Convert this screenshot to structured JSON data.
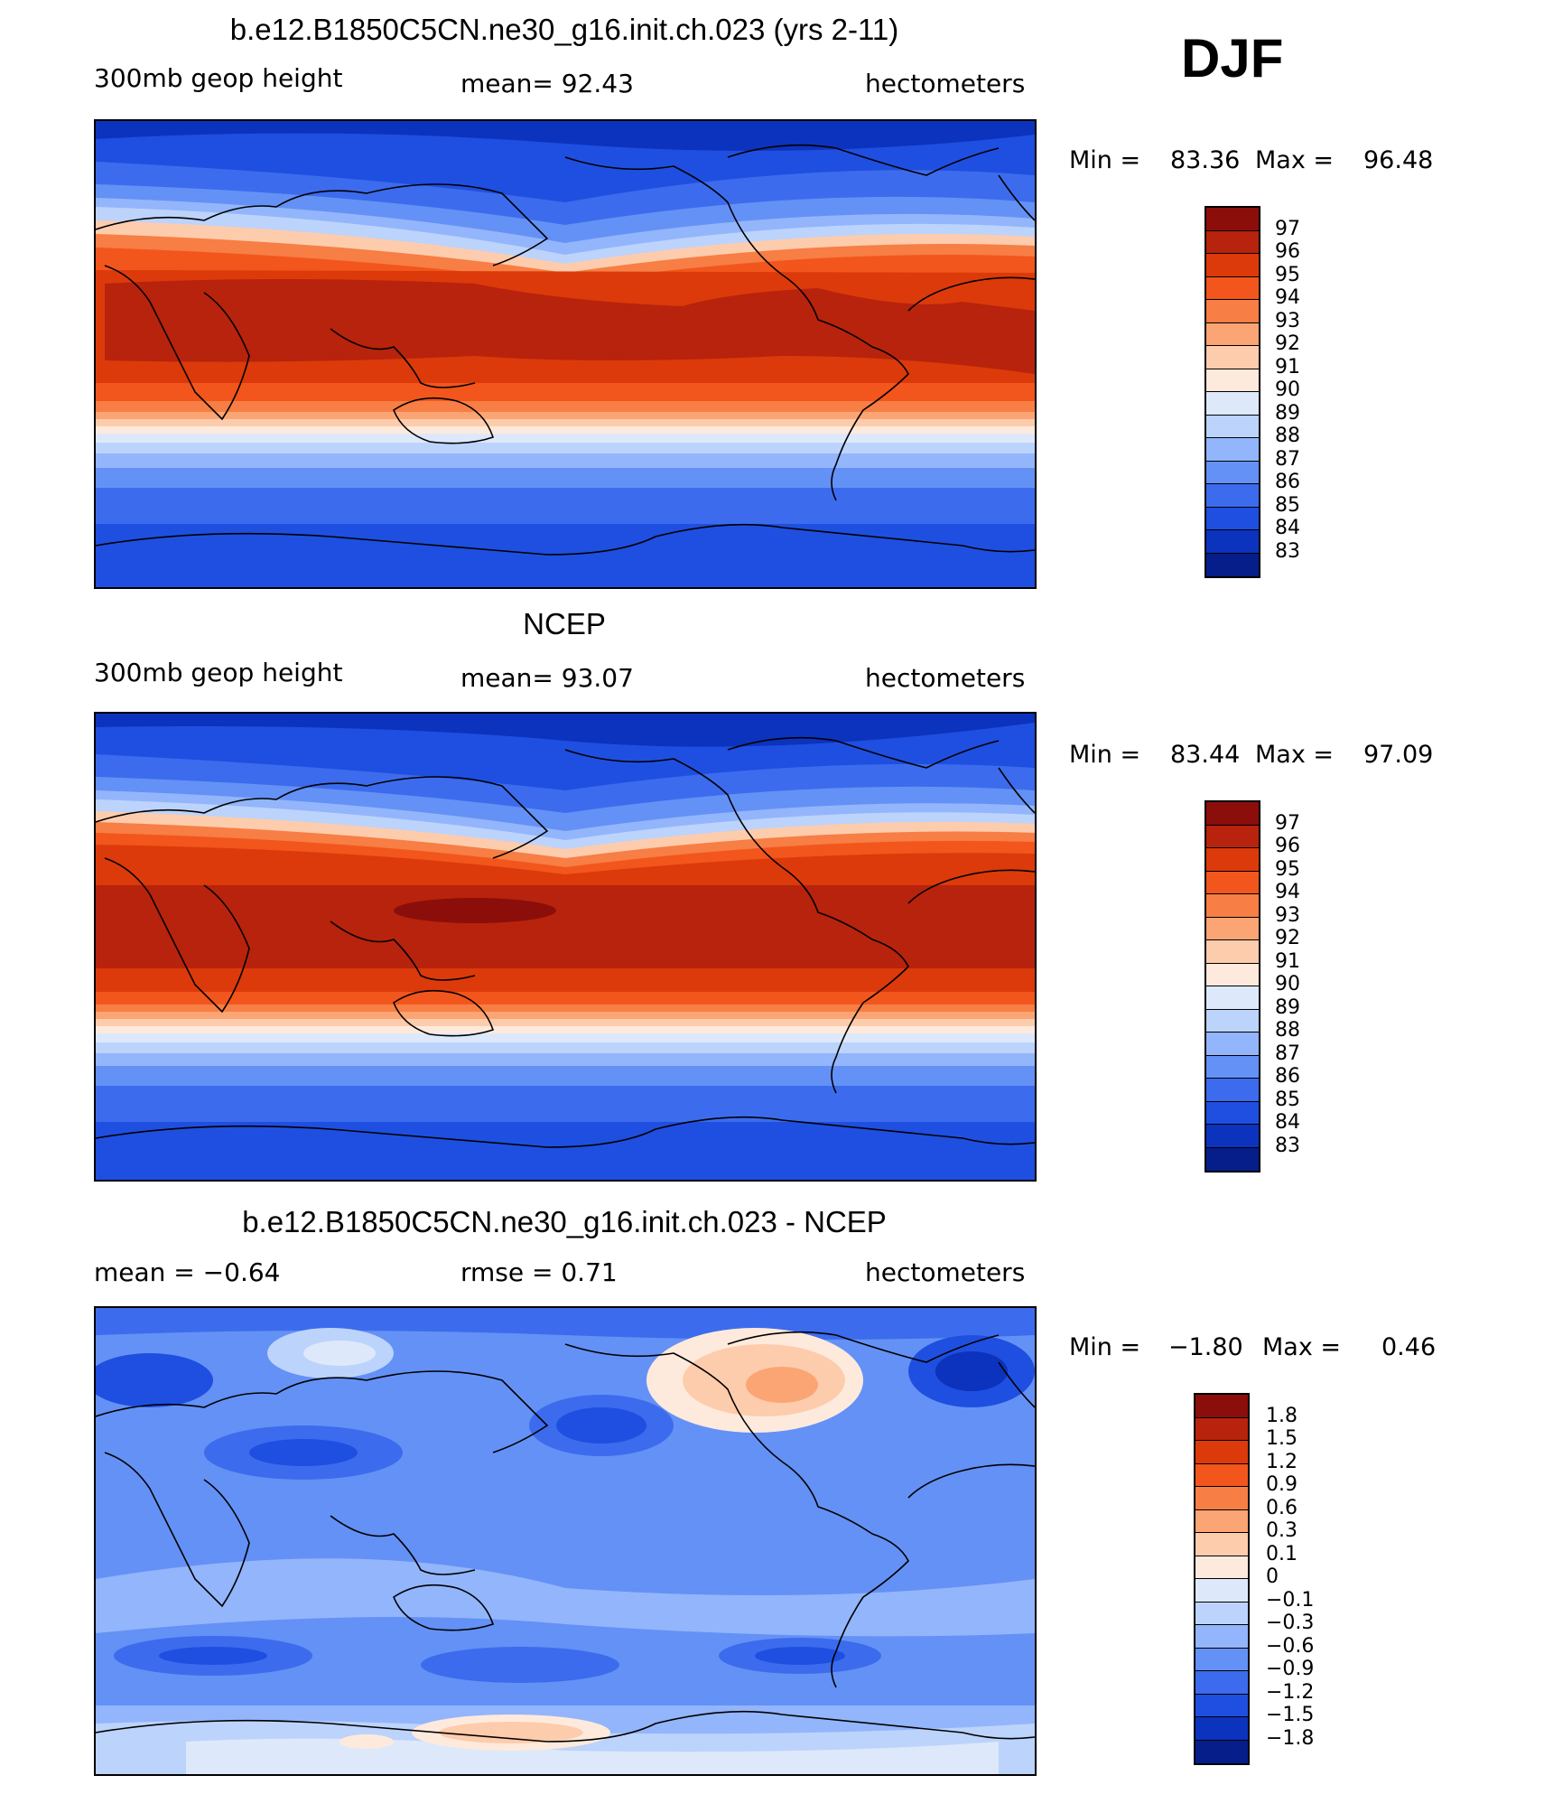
{
  "season": "DJF",
  "panels": [
    {
      "id": "model",
      "title": "b.e12.B1850C5CN.ne30_g16.init.ch.023 (yrs 2-11)",
      "left_label": "300mb geop height",
      "center_label": "mean=  92.43",
      "units": "hectometers",
      "min_label": "Min =",
      "min_value": "83.36",
      "max_label": "Max =",
      "max_value": "96.48",
      "colorbar": {
        "labels": [
          "97",
          "96",
          "95",
          "94",
          "93",
          "92",
          "91",
          "90",
          "89",
          "88",
          "87",
          "86",
          "85",
          "84",
          "83"
        ],
        "colors": [
          "#8b0e0a",
          "#b7230c",
          "#dc3a0a",
          "#f2561c",
          "#f77e44",
          "#fba574",
          "#fdccad",
          "#feeadc",
          "#dde9fa",
          "#bcd3fc",
          "#93b5fb",
          "#6491f5",
          "#3c6ced",
          "#1f4fe0",
          "#0c33bd",
          "#061e8a"
        ]
      }
    },
    {
      "id": "obs",
      "title": "NCEP",
      "left_label": "300mb geop height",
      "center_label": "mean=  93.07",
      "units": "hectometers",
      "min_label": "Min =",
      "min_value": "83.44",
      "max_label": "Max =",
      "max_value": "97.09",
      "colorbar": {
        "labels": [
          "97",
          "96",
          "95",
          "94",
          "93",
          "92",
          "91",
          "90",
          "89",
          "88",
          "87",
          "86",
          "85",
          "84",
          "83"
        ],
        "colors": [
          "#8b0e0a",
          "#b7230c",
          "#dc3a0a",
          "#f2561c",
          "#f77e44",
          "#fba574",
          "#fdccad",
          "#feeadc",
          "#dde9fa",
          "#bcd3fc",
          "#93b5fb",
          "#6491f5",
          "#3c6ced",
          "#1f4fe0",
          "#0c33bd",
          "#061e8a"
        ]
      }
    },
    {
      "id": "diff",
      "title": "b.e12.B1850C5CN.ne30_g16.init.ch.023 - NCEP",
      "left_label": "mean =   −0.64",
      "center_label": "rmse =    0.71",
      "units": "hectometers",
      "min_label": "Min =",
      "min_value": "−1.80",
      "max_label": "Max =",
      "max_value": "0.46",
      "colorbar": {
        "labels": [
          "1.8",
          "1.5",
          "1.2",
          "0.9",
          "0.6",
          "0.3",
          "0.1",
          "0",
          "−0.1",
          "−0.3",
          "−0.6",
          "−0.9",
          "−1.2",
          "−1.5",
          "−1.8"
        ],
        "colors": [
          "#8b0e0a",
          "#b7230c",
          "#dc3a0a",
          "#f2561c",
          "#f77e44",
          "#fba574",
          "#fdccad",
          "#feeadc",
          "#dde9fa",
          "#bcd3fc",
          "#93b5fb",
          "#6491f5",
          "#3c6ced",
          "#1f4fe0",
          "#0c33bd",
          "#061e8a"
        ]
      }
    }
  ]
}
